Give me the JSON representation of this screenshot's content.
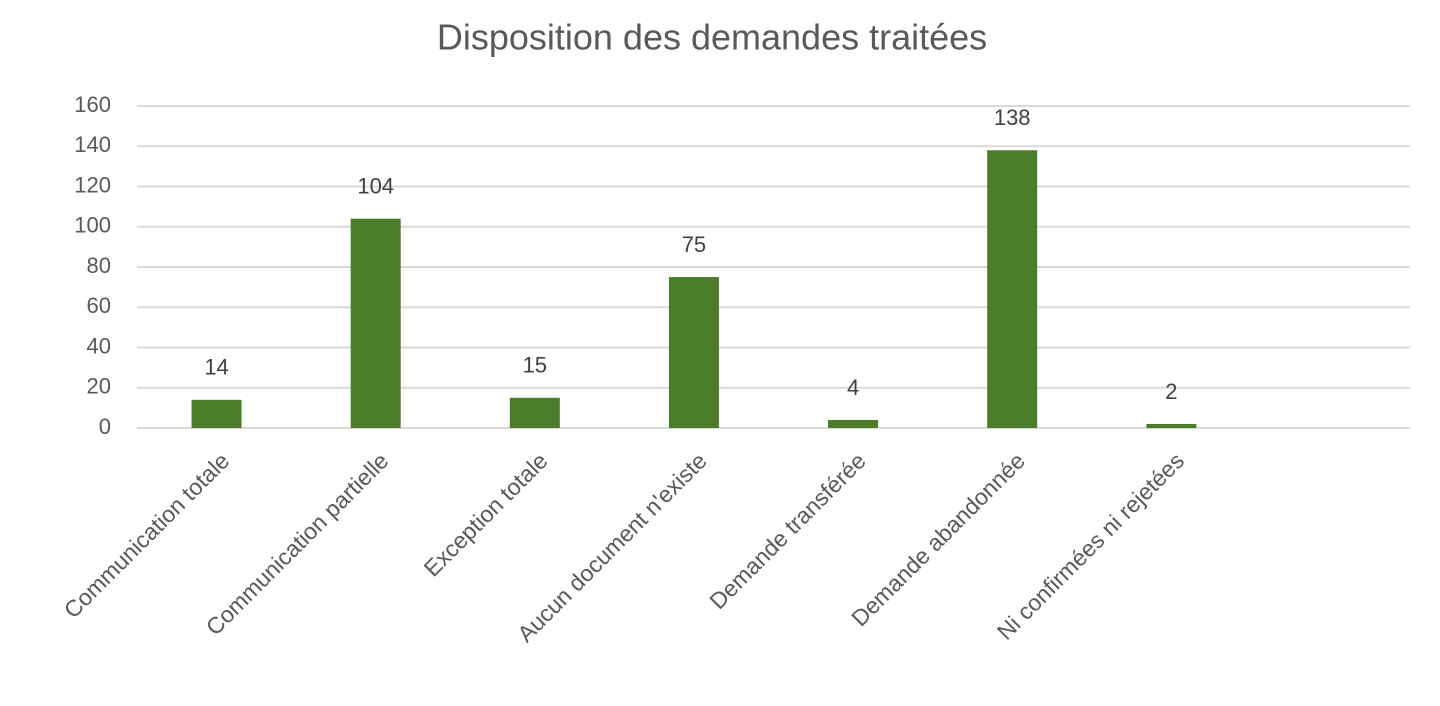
{
  "chart_data": {
    "type": "bar",
    "title": "Disposition des demandes traitées",
    "categories": [
      "Communication totale",
      "Communication partielle",
      "Exception totale",
      "Aucun document n'existe",
      "Demande transférée",
      "Demande abandonnée",
      "Ni confirmées ni rejetées",
      null
    ],
    "values": [
      14,
      104,
      15,
      75,
      4,
      138,
      2,
      null
    ],
    "color": "#4a7c2a",
    "ylim": [
      0,
      160
    ],
    "yticks": [
      0,
      20,
      40,
      60,
      80,
      100,
      120,
      140,
      160
    ],
    "grid": true
  }
}
